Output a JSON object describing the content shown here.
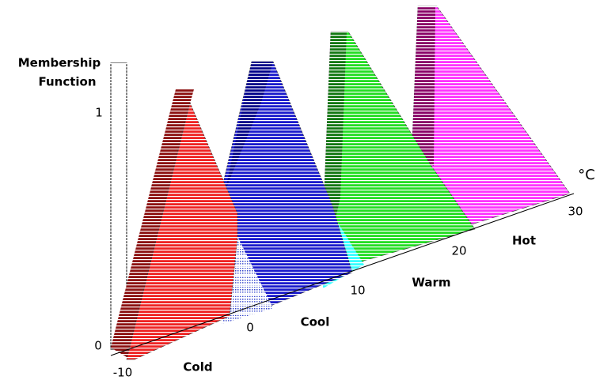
{
  "axis": {
    "title_line1": "Membership",
    "title_line2": "Function",
    "y_labels": [
      "1",
      "0"
    ],
    "x_labels": [
      "-10",
      "0",
      "10",
      "20",
      "30"
    ],
    "unit": "°C"
  },
  "sets": [
    "Cold",
    "Cool",
    "Warm",
    "Hot"
  ]
}
